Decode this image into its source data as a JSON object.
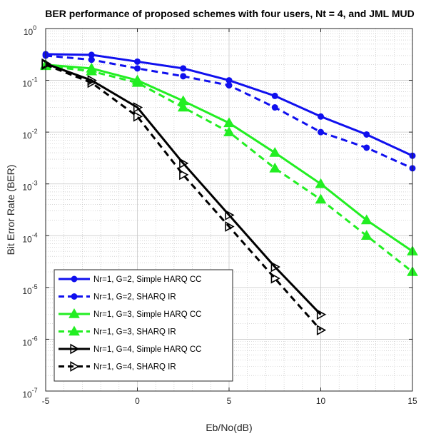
{
  "chart_data": {
    "type": "line",
    "title": "BER performance of proposed schemes with four users, Nt = 4, and JML MUD",
    "xlabel": "Eb/No(dB)",
    "ylabel": "Bit Error Rate (BER)",
    "xlim": [
      -5,
      15
    ],
    "ylim": [
      1e-07,
      1
    ],
    "yscale": "log",
    "xticks": [
      -5,
      0,
      5,
      10,
      15
    ],
    "xtick_labels": [
      "-5",
      "0",
      "5",
      "10",
      "15"
    ],
    "yticks": [
      {
        "exp": 0,
        "base": "10",
        "power": "0"
      },
      {
        "exp": -1,
        "base": "10",
        "power": "-1"
      },
      {
        "exp": -2,
        "base": "10",
        "power": "-2"
      },
      {
        "exp": -3,
        "base": "10",
        "power": "-3"
      },
      {
        "exp": -4,
        "base": "10",
        "power": "-4"
      },
      {
        "exp": -5,
        "base": "10",
        "power": "-5"
      },
      {
        "exp": -6,
        "base": "10",
        "power": "-6"
      },
      {
        "exp": -7,
        "base": "10",
        "power": "-7"
      }
    ],
    "grid": true,
    "legend_position": "bottom-left",
    "series": [
      {
        "name": "Nr=1, G=2, Simple HARQ CC",
        "color": "#1010ee",
        "dash": "solid",
        "marker": "circle",
        "x": [
          -5,
          -2.5,
          0,
          2.5,
          5,
          7.5,
          10,
          12.5,
          15
        ],
        "y": [
          0.32,
          0.31,
          0.23,
          0.17,
          0.1,
          0.05,
          0.02,
          0.009,
          0.0035
        ]
      },
      {
        "name": "Nr=1, G=2, SHARQ IR",
        "color": "#1010ee",
        "dash": "dashed",
        "marker": "circle",
        "x": [
          -5,
          -2.5,
          0,
          2.5,
          5,
          7.5,
          10,
          12.5,
          15
        ],
        "y": [
          0.3,
          0.25,
          0.17,
          0.12,
          0.08,
          0.03,
          0.01,
          0.005,
          0.002
        ]
      },
      {
        "name": "Nr=1, G=3, Simple HARQ CC",
        "color": "#22ee22",
        "dash": "solid",
        "marker": "triangle",
        "x": [
          -5,
          -2.5,
          0,
          2.5,
          5,
          7.5,
          10,
          12.5,
          15
        ],
        "y": [
          0.2,
          0.17,
          0.1,
          0.04,
          0.015,
          0.004,
          0.001,
          0.0002,
          5e-05
        ]
      },
      {
        "name": "Nr=1, G=3, SHARQ IR",
        "color": "#22ee22",
        "dash": "dashed",
        "marker": "triangle",
        "x": [
          -5,
          -2.5,
          0,
          2.5,
          5,
          7.5,
          10,
          12.5,
          15
        ],
        "y": [
          0.19,
          0.15,
          0.09,
          0.03,
          0.01,
          0.002,
          0.0005,
          0.0001,
          2e-05
        ]
      },
      {
        "name": "Nr=1, G=4, Simple HARQ CC",
        "color": "#000000",
        "dash": "solid",
        "marker": "triangle-right",
        "x": [
          -5,
          -2.5,
          0,
          2.5,
          5,
          7.5,
          10
        ],
        "y": [
          0.21,
          0.1,
          0.03,
          0.0025,
          0.00025,
          2.5e-05,
          3e-06
        ]
      },
      {
        "name": "Nr=1, G=4, SHARQ IR",
        "color": "#000000",
        "dash": "dashed",
        "marker": "triangle-right",
        "x": [
          -5,
          -2.5,
          0,
          2.5,
          5,
          7.5,
          10
        ],
        "y": [
          0.2,
          0.09,
          0.02,
          0.0015,
          0.00015,
          1.5e-05,
          1.5e-06
        ]
      }
    ]
  }
}
